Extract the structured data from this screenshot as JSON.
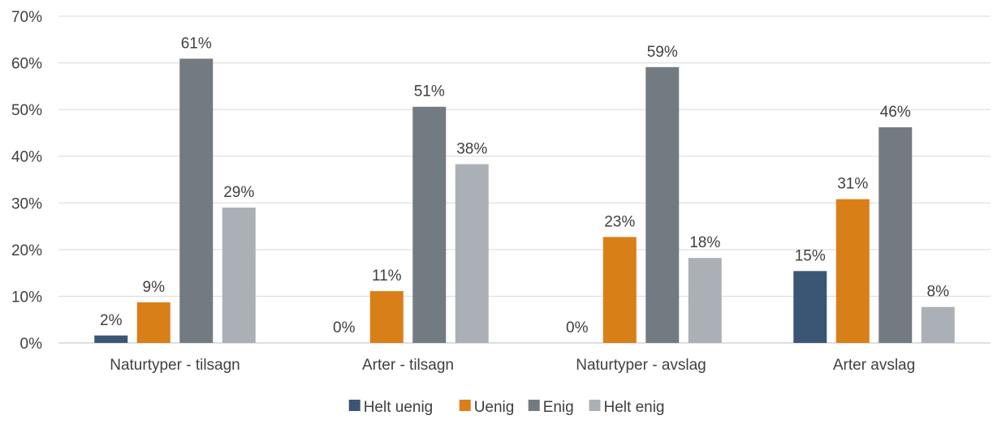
{
  "chart_data": {
    "type": "bar",
    "title": "",
    "xlabel": "",
    "ylabel": "",
    "categories": [
      "Naturtyper - tilsagn",
      "Arter - tilsagn",
      "Naturtyper - avslag",
      "Arter avslag"
    ],
    "series": [
      {
        "name": "Helt uenig",
        "color": "#3b5675",
        "values": [
          1.6,
          0,
          0,
          15.4
        ],
        "labels": [
          "2%",
          "0%",
          "0%",
          "15%"
        ]
      },
      {
        "name": "Uenig",
        "color": "#d97f18",
        "values": [
          8.7,
          11.1,
          22.7,
          30.8
        ],
        "labels": [
          "9%",
          "11%",
          "23%",
          "31%"
        ]
      },
      {
        "name": "Enig",
        "color": "#737b82",
        "values": [
          60.9,
          50.6,
          59.1,
          46.2
        ],
        "labels": [
          "61%",
          "51%",
          "59%",
          "46%"
        ]
      },
      {
        "name": "Helt enig",
        "color": "#aab0b6",
        "values": [
          29.0,
          38.3,
          18.2,
          7.7
        ],
        "labels": [
          "29%",
          "38%",
          "18%",
          "8%"
        ]
      }
    ],
    "ylim": [
      0,
      70
    ],
    "yticks": [
      0,
      10,
      20,
      30,
      40,
      50,
      60,
      70
    ],
    "ytick_labels": [
      "0%",
      "10%",
      "20%",
      "30%",
      "40%",
      "50%",
      "60%",
      "70%"
    ],
    "grid": true,
    "legend_position": "bottom"
  }
}
